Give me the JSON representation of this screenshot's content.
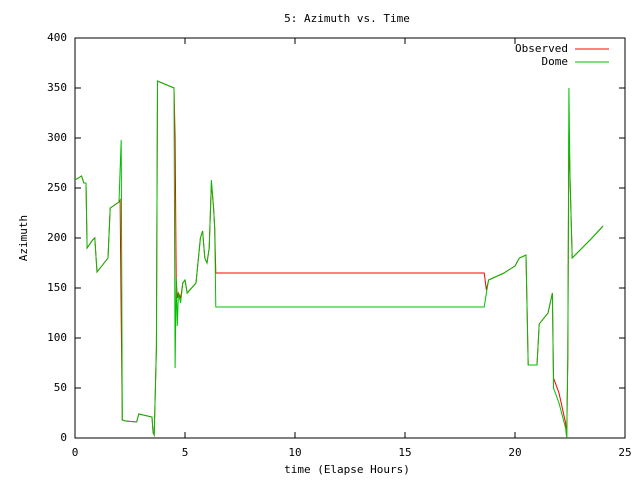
{
  "chart_data": {
    "type": "line",
    "title": "5: Azimuth vs. Time",
    "xlabel": "time (Elapse Hours)",
    "ylabel": "Azimuth",
    "x": [
      0,
      0.3,
      0.4,
      0.5,
      0.55,
      0.8,
      0.9,
      1.0,
      1.5,
      1.6,
      2.0,
      2.05,
      2.1,
      2.15,
      2.3,
      2.8,
      2.9,
      3.5,
      3.55,
      3.6,
      3.7,
      3.75,
      4.5,
      4.55,
      4.6,
      4.65,
      4.7,
      4.8,
      4.9,
      5.0,
      5.1,
      5.5,
      5.7,
      5.8,
      5.9,
      6.0,
      6.1,
      6.2,
      6.3,
      6.35,
      6.4,
      18.6,
      18.7,
      18.8,
      19.5,
      20.0,
      20.2,
      20.5,
      20.6,
      21.0,
      21.1,
      21.5,
      21.7,
      21.75,
      22.0,
      22.3,
      22.35,
      22.4,
      22.45,
      22.5,
      22.6,
      23.5,
      24.0
    ],
    "series": [
      {
        "name": "Observed",
        "color": "#ff0000",
        "values": [
          258,
          262,
          255,
          255,
          190,
          198,
          200,
          166,
          180,
          230,
          236,
          238,
          120,
          18,
          17,
          16,
          24,
          21,
          5,
          3,
          90,
          357,
          350,
          300,
          160,
          140,
          145,
          140,
          155,
          158,
          145,
          155,
          200,
          207,
          180,
          175,
          190,
          255,
          230,
          210,
          165,
          165,
          148,
          158,
          165,
          172,
          180,
          183,
          73,
          73,
          114,
          125,
          145,
          60,
          45,
          15,
          0,
          80,
          305,
          262,
          180,
          200,
          212
        ]
      },
      {
        "name": "Dome",
        "color": "#00c000",
        "values": [
          258,
          262,
          255,
          255,
          190,
          198,
          200,
          166,
          180,
          230,
          236,
          268,
          298,
          18,
          17,
          16,
          24,
          21,
          5,
          3,
          90,
          357,
          350,
          70,
          160,
          112,
          145,
          135,
          155,
          158,
          145,
          155,
          200,
          207,
          180,
          175,
          190,
          258,
          230,
          210,
          131,
          131,
          145,
          158,
          165,
          172,
          180,
          183,
          73,
          73,
          114,
          125,
          145,
          50,
          35,
          10,
          0,
          80,
          350,
          260,
          180,
          200,
          212
        ]
      }
    ],
    "xlim": [
      0,
      25
    ],
    "xticks": [
      0,
      5,
      10,
      15,
      20,
      25
    ],
    "ylim": [
      0,
      400
    ],
    "yticks": [
      0,
      50,
      100,
      150,
      200,
      250,
      300,
      350,
      400
    ],
    "legend": "upper right"
  }
}
